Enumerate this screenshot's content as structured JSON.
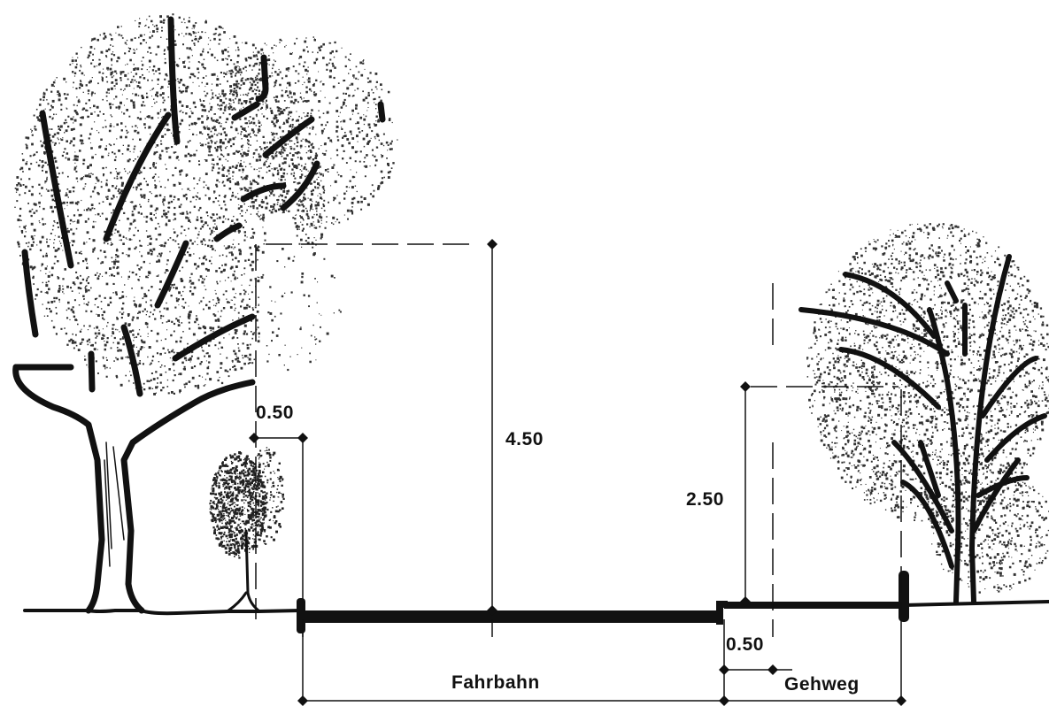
{
  "diagram": {
    "dimensions": {
      "left_clearance": "0.50",
      "clear_height_road": "4.50",
      "clear_height_sidewalk": "2.50",
      "sidewalk_clearance": "0.50"
    },
    "labels": {
      "roadway": "Fahrbahn",
      "sidewalk": "Gehweg"
    },
    "colors": {
      "ink": "#111111",
      "foliage": "#333333",
      "background": "#ffffff"
    }
  }
}
